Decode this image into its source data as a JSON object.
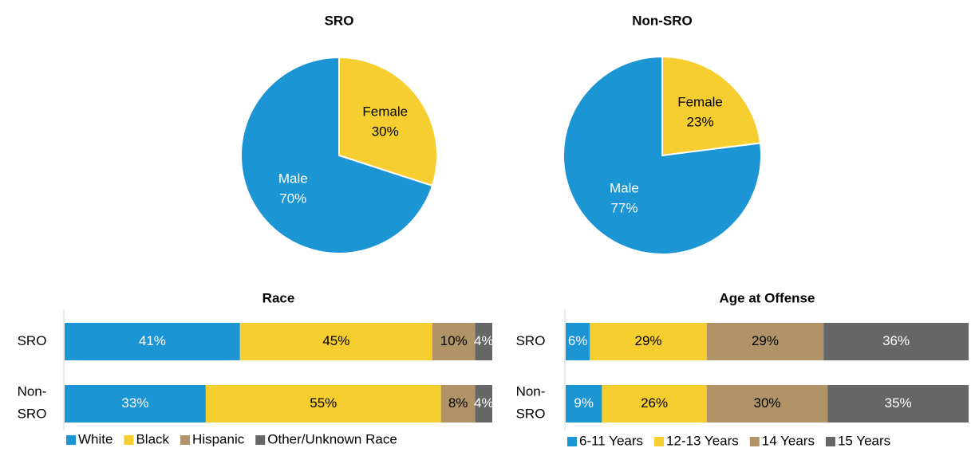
{
  "chart_data": [
    {
      "type": "pie",
      "title": "SRO",
      "categories": [
        "Female",
        "Male"
      ],
      "values": [
        30,
        70
      ],
      "value_labels": [
        "30%",
        "70%"
      ],
      "colors": [
        "#f7ce2f",
        "#1b95d3"
      ]
    },
    {
      "type": "pie",
      "title": "Non-SRO",
      "categories": [
        "Female",
        "Male"
      ],
      "values": [
        23,
        77
      ],
      "value_labels": [
        "23%",
        "77%"
      ],
      "colors": [
        "#f7ce2f",
        "#1b95d3"
      ]
    },
    {
      "type": "bar",
      "orientation": "horizontal",
      "stacked": true,
      "title": "Race",
      "categories": [
        "SRO",
        "Non-SRO"
      ],
      "xlim": [
        0,
        100
      ],
      "series": [
        {
          "name": "White",
          "color": "#1b95d3",
          "values": [
            41,
            33
          ],
          "value_labels": [
            "41%",
            "33%"
          ]
        },
        {
          "name": "Black",
          "color": "#f7ce2f",
          "values": [
            45,
            55
          ],
          "value_labels": [
            "45%",
            "55%"
          ]
        },
        {
          "name": "Hispanic",
          "color": "#b09468",
          "values": [
            10,
            8
          ],
          "value_labels": [
            "10%",
            "8%"
          ]
        },
        {
          "name": "Other/Unknown Race",
          "color": "#666666",
          "values": [
            4,
            4
          ],
          "value_labels": [
            "4%",
            "4%"
          ]
        }
      ]
    },
    {
      "type": "bar",
      "orientation": "horizontal",
      "stacked": true,
      "title": "Age at Offense",
      "categories": [
        "SRO",
        "Non-SRO"
      ],
      "xlim": [
        0,
        100
      ],
      "series": [
        {
          "name": "6-11 Years",
          "color": "#1b95d3",
          "values": [
            6,
            9
          ],
          "value_labels": [
            "6%",
            "9%"
          ]
        },
        {
          "name": "12-13 Years",
          "color": "#f7ce2f",
          "values": [
            29,
            26
          ],
          "value_labels": [
            "29%",
            "26%"
          ]
        },
        {
          "name": "14 Years",
          "color": "#b09468",
          "values": [
            29,
            30
          ],
          "value_labels": [
            "29%",
            "30%"
          ]
        },
        {
          "name": "15 Years",
          "color": "#666666",
          "values": [
            36,
            35
          ],
          "value_labels": [
            "36%",
            "35%"
          ]
        }
      ]
    }
  ]
}
